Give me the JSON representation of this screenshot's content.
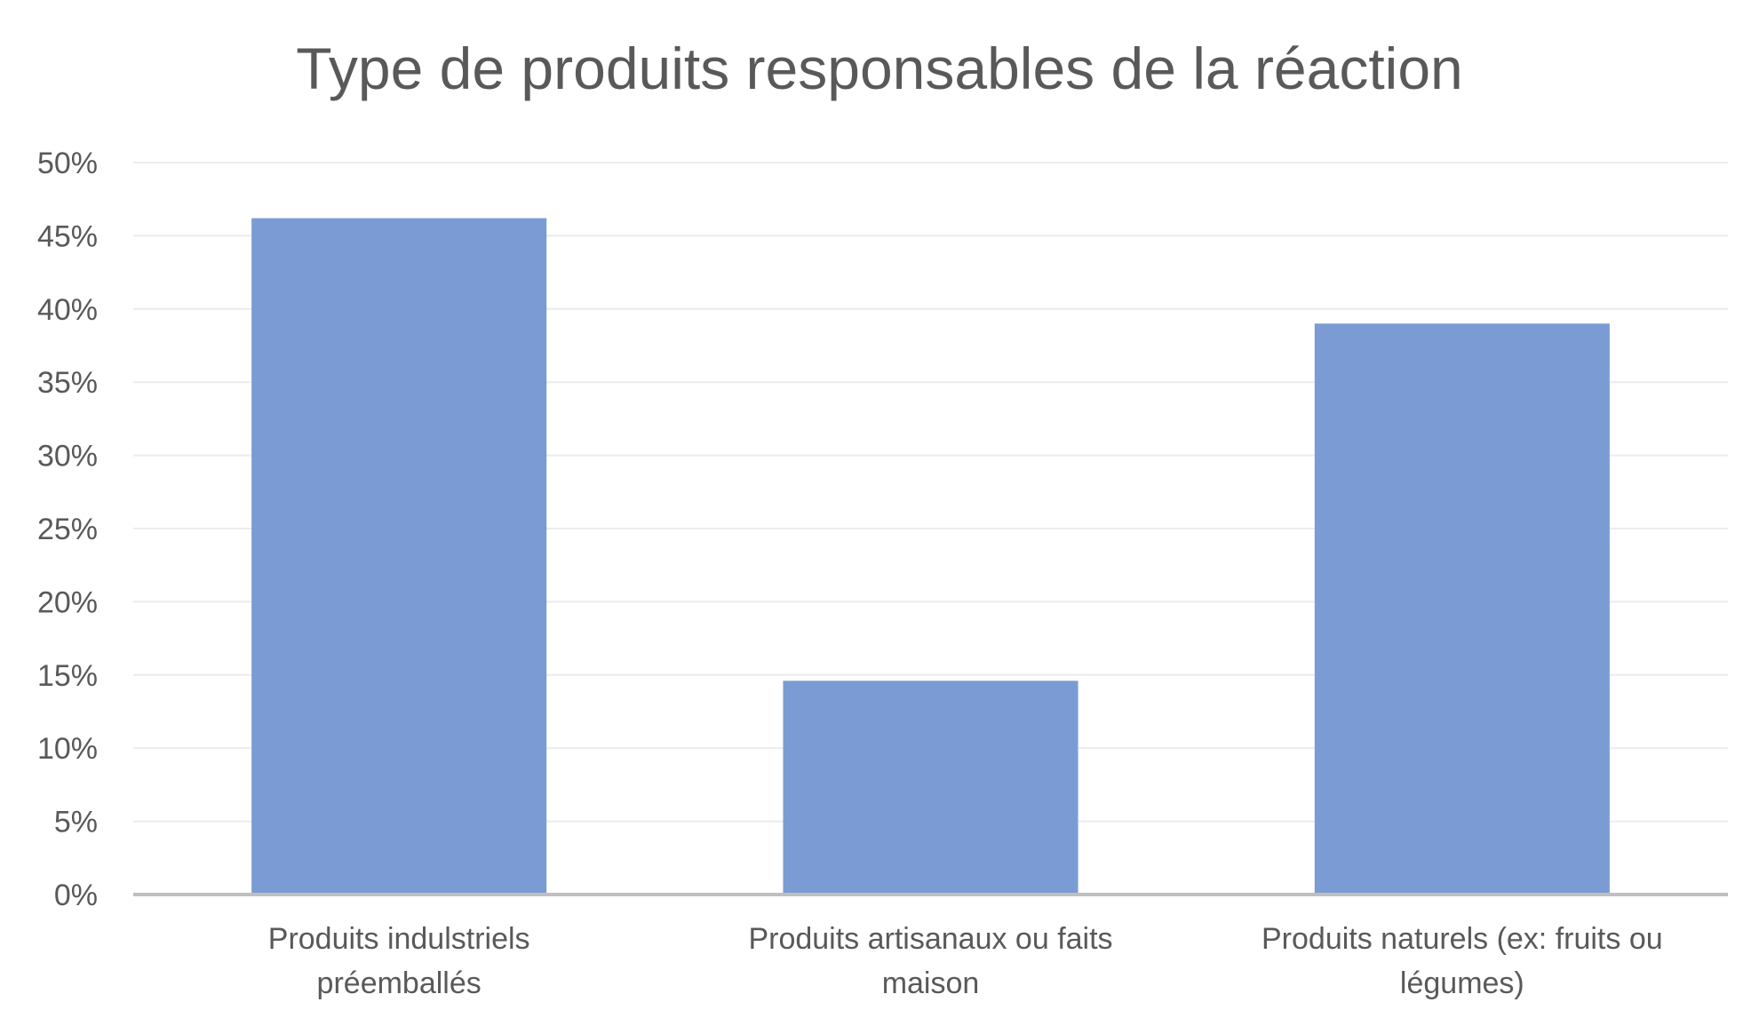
{
  "chart_data": {
    "type": "bar",
    "title": "Type de produits responsables de la réaction",
    "xlabel": "",
    "ylabel": "",
    "categories": [
      [
        "Produits indulstriels",
        "préemballés"
      ],
      [
        "Produits artisanaux ou faits",
        "maison"
      ],
      [
        "Produits naturels (ex: fruits ou",
        "légumes)"
      ]
    ],
    "values": [
      46.2,
      14.6,
      39.0
    ],
    "ylim": [
      0,
      50
    ],
    "y_ticks": [
      "0%",
      "5%",
      "10%",
      "15%",
      "20%",
      "25%",
      "30%",
      "35%",
      "40%",
      "45%",
      "50%"
    ],
    "grid": true,
    "legend": "none",
    "colors": {
      "bar": "#7b9bd4",
      "grid": "#ececec",
      "axis": "#bfbfbf",
      "text": "#595959"
    }
  }
}
